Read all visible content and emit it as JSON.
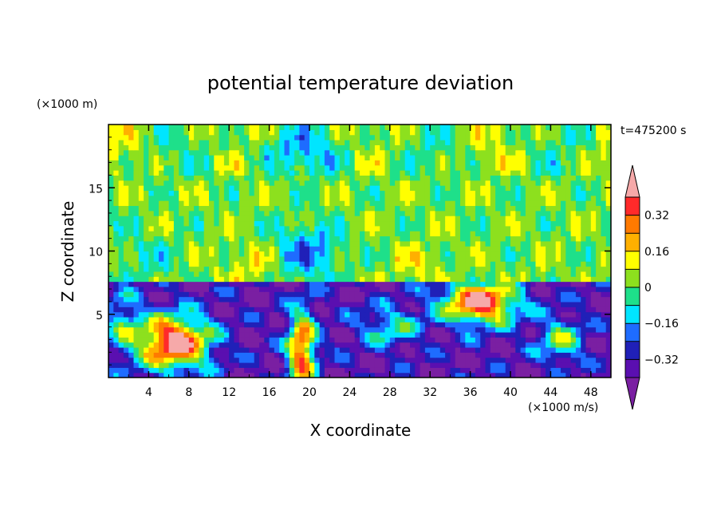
{
  "chart_data": {
    "type": "heatmap",
    "title": "potential temperature deviation",
    "xlabel": "X coordinate",
    "ylabel": "Z coordinate",
    "x_unit": "(×1000 m/s)",
    "y_unit": "(×1000 m)",
    "time_label": "t=475200 s",
    "xlim": [
      0,
      50
    ],
    "ylim": [
      0,
      20
    ],
    "xticks": [
      4,
      8,
      12,
      16,
      20,
      24,
      28,
      32,
      36,
      40,
      44,
      48
    ],
    "yticks": [
      5,
      10,
      15
    ],
    "colorbar": {
      "levels": [
        -0.4,
        -0.32,
        -0.24,
        -0.16,
        -0.08,
        0,
        0.08,
        0.16,
        0.24,
        0.32,
        0.4
      ],
      "labeled_levels": [
        0.32,
        0.16,
        0,
        -0.16,
        -0.32
      ],
      "labels": [
        "0.32",
        "0.16",
        "0",
        "−0.16",
        "−0.32"
      ],
      "colors": [
        "#7a1fa2",
        "#5a0fb0",
        "#2020b8",
        "#1e6cff",
        "#00e5ff",
        "#1ee08a",
        "#8de01e",
        "#ffff00",
        "#ffb000",
        "#ff7a00",
        "#ff2a2a",
        "#f6a9a9"
      ],
      "extend": "both"
    },
    "regions": [
      {
        "x": [
          0,
          50
        ],
        "z": [
          16,
          20
        ],
        "value": 0.05,
        "note": "upper layer mostly weakly positive (green/yellow)"
      },
      {
        "x": [
          16,
          24
        ],
        "z": [
          8,
          14
        ],
        "value": -0.2,
        "note": "negative anomaly column aloft"
      },
      {
        "x": [
          0,
          50
        ],
        "z": [
          0,
          7.5
        ],
        "value": -0.35,
        "note": "strongly negative boundary layer with mixed patches"
      },
      {
        "x": [
          2,
          10
        ],
        "z": [
          0.5,
          5
        ],
        "value": 0.45,
        "note": "strong positive blob"
      },
      {
        "x": [
          32,
          42
        ],
        "z": [
          4,
          8
        ],
        "value": 0.45,
        "note": "strong positive blob"
      },
      {
        "x": [
          17,
          21
        ],
        "z": [
          0,
          7
        ],
        "value": 0.45,
        "note": "positive plume"
      }
    ]
  },
  "colors": {
    "axis": "#000000",
    "background": "#ffffff"
  }
}
